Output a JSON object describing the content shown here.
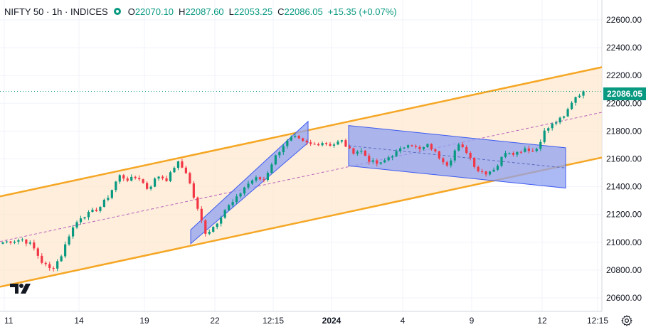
{
  "legend": {
    "symbol": "NIFTY 50 · 1h · INDICES",
    "open_key": "O",
    "open": "22070.10",
    "high_key": "H",
    "high": "22087.60",
    "low_key": "L",
    "low": "22053.25",
    "close_key": "C",
    "close": "22086.05",
    "change": "+15.35 (+0.07%)",
    "status_color": "#089981"
  },
  "last_price_label": "22086.05",
  "icons": {
    "logo": "tradingview-logo-icon",
    "settings": "gear-icon"
  },
  "colors": {
    "up": "#089981",
    "down": "#f23645",
    "channel": "#f5a623",
    "channel_fill": "#fde8cf",
    "blue_channel": "#3d5af1",
    "blue_fill": "#8fa2f0"
  },
  "chart_data": {
    "type": "candlestick",
    "symbol": "NIFTY 50",
    "interval": "1h",
    "y_ticks": [
      20600,
      20800,
      21000,
      21200,
      21400,
      21600,
      21800,
      22000,
      22200,
      22400,
      22600
    ],
    "y_tick_labels": [
      "20600.00",
      "20800.00",
      "21000.00",
      "21200.00",
      "21400.00",
      "21600.00",
      "21800.00",
      "22000.00",
      "22200.00",
      "22400.00",
      "22600.00"
    ],
    "ylim": [
      20520,
      22720
    ],
    "x_tick_labels": [
      "11",
      "14",
      "19",
      "22",
      "12:15",
      "2024",
      "4",
      "9",
      "12",
      "12:15"
    ],
    "series_anchors": [
      {
        "close": 21000
      },
      {
        "close": 21010
      },
      {
        "close": 21020
      },
      {
        "close": 20980
      },
      {
        "close": 20860
      },
      {
        "close": 20800
      },
      {
        "close": 20900
      },
      {
        "close": 21080
      },
      {
        "close": 21180
      },
      {
        "close": 21210
      },
      {
        "close": 21250
      },
      {
        "close": 21340
      },
      {
        "close": 21480
      },
      {
        "close": 21450
      },
      {
        "close": 21470
      },
      {
        "close": 21380
      },
      {
        "close": 21480
      },
      {
        "close": 21450
      },
      {
        "close": 21580
      },
      {
        "close": 21500
      },
      {
        "close": 21260
      },
      {
        "close": 21060
      },
      {
        "close": 21130
      },
      {
        "close": 21240
      },
      {
        "close": 21300
      },
      {
        "close": 21400
      },
      {
        "close": 21460
      },
      {
        "close": 21450
      },
      {
        "close": 21600
      },
      {
        "close": 21700
      },
      {
        "close": 21760
      },
      {
        "close": 21720
      },
      {
        "close": 21700
      },
      {
        "close": 21720
      },
      {
        "close": 21700
      },
      {
        "close": 21730
      },
      {
        "close": 21650
      },
      {
        "close": 21660
      },
      {
        "close": 21580
      },
      {
        "close": 21560
      },
      {
        "close": 21620
      },
      {
        "close": 21660
      },
      {
        "close": 21720
      },
      {
        "close": 21660
      },
      {
        "close": 21700
      },
      {
        "close": 21620
      },
      {
        "close": 21560
      },
      {
        "close": 21700
      },
      {
        "close": 21650
      },
      {
        "close": 21520
      },
      {
        "close": 21500
      },
      {
        "close": 21540
      },
      {
        "close": 21660
      },
      {
        "close": 21640
      },
      {
        "close": 21680
      },
      {
        "close": 21650
      },
      {
        "close": 21800
      },
      {
        "close": 21860
      },
      {
        "close": 21900
      },
      {
        "close": 22040
      },
      {
        "close": 22086
      }
    ],
    "last_price": 22086.05,
    "drawings": {
      "orange_channel": {
        "start": [
          0,
          21330
        ],
        "end": [
          1,
          22260
        ],
        "lower_start": [
          0,
          20680
        ],
        "lower_end": [
          1,
          21610
        ]
      },
      "blue_rising_channel": {
        "low_start": 20990,
        "low_end": 21680,
        "high_start": 21090,
        "high_end": 21870
      },
      "blue_flat_channel": {
        "top_start": 21840,
        "top_end": 21680,
        "bottom_start": 21550,
        "bottom_end": 21390
      }
    }
  }
}
